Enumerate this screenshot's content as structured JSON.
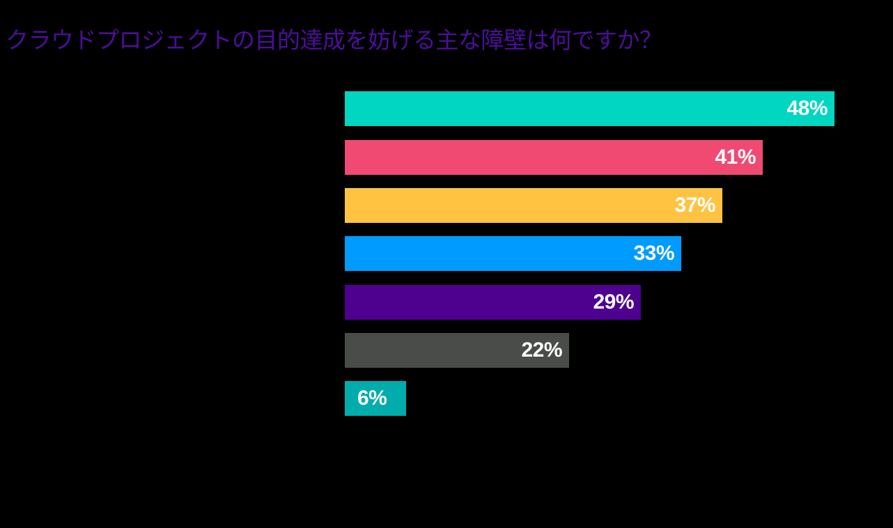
{
  "title": "クラウドプロジェクトの目的達成を妨げる主な障壁は何ですか？",
  "colors": {
    "background": "#000000",
    "title": "#4b0f9a",
    "label_text": "#ffffff"
  },
  "chart_data": {
    "type": "bar",
    "orientation": "horizontal",
    "title": "クラウドプロジェクトの目的達成を妨げる主な障壁は何ですか？",
    "xlabel": "",
    "ylabel": "",
    "categories": [
      "",
      "",
      "",
      "",
      "",
      "",
      ""
    ],
    "values": [
      48,
      41,
      37,
      33,
      29,
      22,
      6
    ],
    "value_labels": [
      "48%",
      "41%",
      "37%",
      "33%",
      "29%",
      "22%",
      "6%"
    ],
    "bar_colors": [
      "#00d6c0",
      "#f04a73",
      "#ffc341",
      "#009bff",
      "#4e008e",
      "#4a4c49",
      "#00acac"
    ],
    "unit": "%",
    "grid": false,
    "legend": null,
    "xlim": [
      0,
      50
    ]
  },
  "bars": [
    {
      "label": "48%",
      "value": 48,
      "color": "#00d6c0"
    },
    {
      "label": "41%",
      "value": 41,
      "color": "#f04a73"
    },
    {
      "label": "37%",
      "value": 37,
      "color": "#ffc341"
    },
    {
      "label": "33%",
      "value": 33,
      "color": "#009bff"
    },
    {
      "label": "29%",
      "value": 29,
      "color": "#4e008e"
    },
    {
      "label": "22%",
      "value": 22,
      "color": "#4a4c49"
    },
    {
      "label": "6%",
      "value": 6,
      "color": "#00acac"
    }
  ]
}
